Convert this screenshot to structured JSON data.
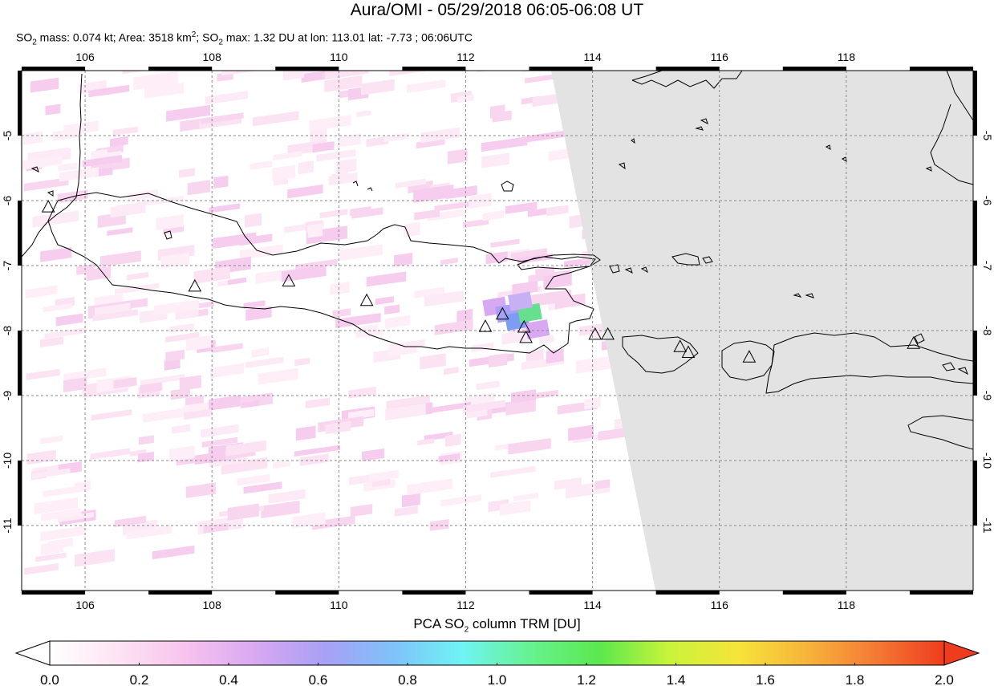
{
  "title": "Aura/OMI - 05/29/2018 06:05-06:08 UT",
  "subtitle": {
    "p1": "SO",
    "sub1": "2",
    "p2": " mass: 0.074 kt; Area: 3518 km",
    "sup1": "2",
    "p3": "; SO",
    "sub2": "2",
    "p4": " max: 1.32 DU at lon: 113.01 lat: -7.73 ; 06:06UTC"
  },
  "map": {
    "lon_range": [
      105,
      120
    ],
    "lat_range": [
      -12,
      -4
    ],
    "lon_ticks": [
      "106",
      "108",
      "110",
      "112",
      "114",
      "116",
      "118"
    ],
    "lat_ticks": [
      "-5",
      "-6",
      "-7",
      "-8",
      "-9",
      "-10",
      "-11"
    ],
    "no_data_color": "#e3e3e3",
    "volcano_marker": "triangle-icon",
    "volcanoes": [
      {
        "lon": 105.42,
        "lat": -6.1
      },
      {
        "lon": 107.73,
        "lat": -7.32
      },
      {
        "lon": 109.21,
        "lat": -7.24
      },
      {
        "lon": 110.44,
        "lat": -7.54
      },
      {
        "lon": 112.31,
        "lat": -7.94
      },
      {
        "lon": 112.58,
        "lat": -7.75
      },
      {
        "lon": 112.92,
        "lat": -7.95
      },
      {
        "lon": 112.95,
        "lat": -8.11
      },
      {
        "lon": 114.04,
        "lat": -8.06
      },
      {
        "lon": 114.24,
        "lat": -8.06
      },
      {
        "lon": 115.38,
        "lat": -8.25
      },
      {
        "lon": 115.51,
        "lat": -8.34
      },
      {
        "lon": 116.47,
        "lat": -8.41
      },
      {
        "lon": 119.06,
        "lat": -8.2
      }
    ]
  },
  "colorbar": {
    "label_pre": "PCA SO",
    "label_sub": "2",
    "label_post": " column TRM [DU]",
    "min": 0.0,
    "max": 2.0,
    "ticks": [
      "0.0",
      "0.2",
      "0.4",
      "0.6",
      "0.8",
      "1.0",
      "1.2",
      "1.4",
      "1.6",
      "1.8",
      "2.0"
    ],
    "colors": [
      "#ffffff",
      "#fde3f3",
      "#f7c2ee",
      "#d8a8f2",
      "#a8a0f4",
      "#7fc2fa",
      "#6ff4f4",
      "#66f28e",
      "#5ce84e",
      "#c8f43a",
      "#f6e43a",
      "#f7b43a",
      "#f47a34",
      "#ef3c1e"
    ],
    "under_color": "#ffffff",
    "over_color": "#ef3c1e"
  },
  "so2_max": {
    "value": 1.32,
    "lon": 113.01,
    "lat": -7.73
  }
}
